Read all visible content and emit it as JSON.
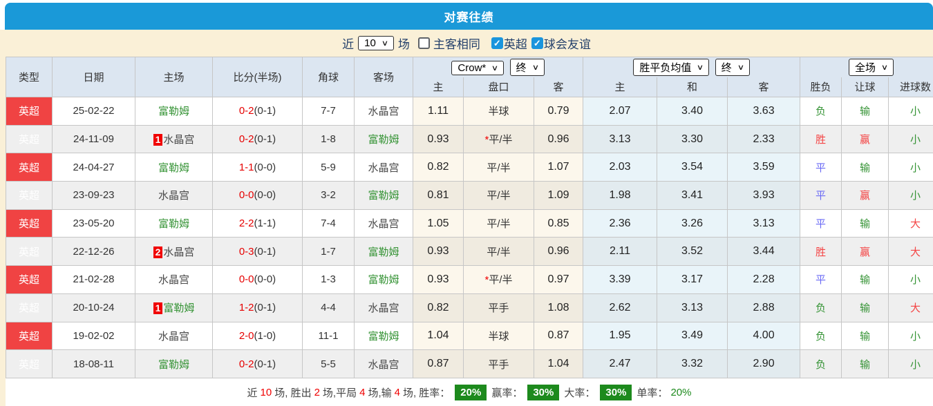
{
  "title": "对赛往绩",
  "colors": {
    "topbar_blue": "#1a99d8",
    "filter_cream": "#faf0d7",
    "header_bg": "#dce6f1",
    "row_alt_gray": "#efefef",
    "asia_col_tint": "#fcf7ec",
    "avg_col_tint": "#e9f4f9",
    "league_red": "#f04343",
    "team_green": "#359335",
    "team_dark": "#4a4a4a",
    "score_red": "#e60000",
    "win_red": "#f44444",
    "draw_blue": "#6a6af5",
    "lose_green": "#359335",
    "summary_badge_green": "#1d8a1d",
    "checkbox_blue": "#1a95dd"
  },
  "filter": {
    "near_label": "近",
    "count": "10",
    "games_label": "场",
    "checkboxes": [
      {
        "label": "主客相同",
        "checked": false
      },
      {
        "label": "英超",
        "checked": true
      },
      {
        "label": "球会友谊",
        "checked": true
      }
    ],
    "check_glyph": "✓",
    "chevron_glyph": "∨"
  },
  "table": {
    "static_headers": [
      "类型",
      "日期",
      "主场",
      "比分(半场)",
      "角球",
      "客场"
    ],
    "group_asia": {
      "bookmaker_select": "Crow*",
      "time_select": "终",
      "cols": [
        "主",
        "盘口",
        "客"
      ]
    },
    "group_avg": {
      "odds_select": "胜平负均值",
      "time_select": "终",
      "cols": [
        "主",
        "和",
        "客"
      ]
    },
    "group_full": {
      "scope_select": "全场",
      "cols": [
        "胜负",
        "让球",
        "进球数"
      ]
    },
    "rows": [
      {
        "league": "英超",
        "date": "25-02-22",
        "home": {
          "badge": "",
          "name": "富勒姆",
          "color": "green"
        },
        "score": {
          "ft": "0-2",
          "ht": "(0-1)"
        },
        "corners": "7-7",
        "away": {
          "name": "水晶宫",
          "color": "dark"
        },
        "asia": {
          "home": "1.11",
          "star": false,
          "line": "半球",
          "away": "0.79"
        },
        "avg": {
          "home": "2.07",
          "draw": "3.40",
          "away": "3.63"
        },
        "full": {
          "result": {
            "t": "负",
            "c": "green"
          },
          "handicap": {
            "t": "输",
            "c": "green"
          },
          "goals": {
            "t": "小",
            "c": "green"
          }
        }
      },
      {
        "league": "英超",
        "date": "24-11-09",
        "home": {
          "badge": "1",
          "name": "水晶宫",
          "color": "dark"
        },
        "score": {
          "ft": "0-2",
          "ht": "(0-1)"
        },
        "corners": "1-8",
        "away": {
          "name": "富勒姆",
          "color": "green"
        },
        "asia": {
          "home": "0.93",
          "star": true,
          "line": "平/半",
          "away": "0.96"
        },
        "avg": {
          "home": "3.13",
          "draw": "3.30",
          "away": "2.33"
        },
        "full": {
          "result": {
            "t": "胜",
            "c": "red"
          },
          "handicap": {
            "t": "赢",
            "c": "red"
          },
          "goals": {
            "t": "小",
            "c": "green"
          }
        }
      },
      {
        "league": "英超",
        "date": "24-04-27",
        "home": {
          "badge": "",
          "name": "富勒姆",
          "color": "green"
        },
        "score": {
          "ft": "1-1",
          "ht": "(0-0)"
        },
        "corners": "5-9",
        "away": {
          "name": "水晶宫",
          "color": "dark"
        },
        "asia": {
          "home": "0.82",
          "star": false,
          "line": "平/半",
          "away": "1.07"
        },
        "avg": {
          "home": "2.03",
          "draw": "3.54",
          "away": "3.59"
        },
        "full": {
          "result": {
            "t": "平",
            "c": "blue"
          },
          "handicap": {
            "t": "输",
            "c": "green"
          },
          "goals": {
            "t": "小",
            "c": "green"
          }
        }
      },
      {
        "league": "英超",
        "date": "23-09-23",
        "home": {
          "badge": "",
          "name": "水晶宫",
          "color": "dark"
        },
        "score": {
          "ft": "0-0",
          "ht": "(0-0)"
        },
        "corners": "3-2",
        "away": {
          "name": "富勒姆",
          "color": "green"
        },
        "asia": {
          "home": "0.81",
          "star": false,
          "line": "平/半",
          "away": "1.09"
        },
        "avg": {
          "home": "1.98",
          "draw": "3.41",
          "away": "3.93"
        },
        "full": {
          "result": {
            "t": "平",
            "c": "blue"
          },
          "handicap": {
            "t": "赢",
            "c": "red"
          },
          "goals": {
            "t": "小",
            "c": "green"
          }
        }
      },
      {
        "league": "英超",
        "date": "23-05-20",
        "home": {
          "badge": "",
          "name": "富勒姆",
          "color": "green"
        },
        "score": {
          "ft": "2-2",
          "ht": "(1-1)"
        },
        "corners": "7-4",
        "away": {
          "name": "水晶宫",
          "color": "dark"
        },
        "asia": {
          "home": "1.05",
          "star": false,
          "line": "平/半",
          "away": "0.85"
        },
        "avg": {
          "home": "2.36",
          "draw": "3.26",
          "away": "3.13"
        },
        "full": {
          "result": {
            "t": "平",
            "c": "blue"
          },
          "handicap": {
            "t": "输",
            "c": "green"
          },
          "goals": {
            "t": "大",
            "c": "red"
          }
        }
      },
      {
        "league": "英超",
        "date": "22-12-26",
        "home": {
          "badge": "2",
          "name": "水晶宫",
          "color": "dark"
        },
        "score": {
          "ft": "0-3",
          "ht": "(0-1)"
        },
        "corners": "1-7",
        "away": {
          "name": "富勒姆",
          "color": "green"
        },
        "asia": {
          "home": "0.93",
          "star": false,
          "line": "平/半",
          "away": "0.96"
        },
        "avg": {
          "home": "2.11",
          "draw": "3.52",
          "away": "3.44"
        },
        "full": {
          "result": {
            "t": "胜",
            "c": "red"
          },
          "handicap": {
            "t": "赢",
            "c": "red"
          },
          "goals": {
            "t": "大",
            "c": "red"
          }
        }
      },
      {
        "league": "英超",
        "date": "21-02-28",
        "home": {
          "badge": "",
          "name": "水晶宫",
          "color": "dark"
        },
        "score": {
          "ft": "0-0",
          "ht": "(0-0)"
        },
        "corners": "1-3",
        "away": {
          "name": "富勒姆",
          "color": "green"
        },
        "asia": {
          "home": "0.93",
          "star": true,
          "line": "平/半",
          "away": "0.97"
        },
        "avg": {
          "home": "3.39",
          "draw": "3.17",
          "away": "2.28"
        },
        "full": {
          "result": {
            "t": "平",
            "c": "blue"
          },
          "handicap": {
            "t": "输",
            "c": "green"
          },
          "goals": {
            "t": "小",
            "c": "green"
          }
        }
      },
      {
        "league": "英超",
        "date": "20-10-24",
        "home": {
          "badge": "1",
          "name": "富勒姆",
          "color": "green"
        },
        "score": {
          "ft": "1-2",
          "ht": "(0-1)"
        },
        "corners": "4-4",
        "away": {
          "name": "水晶宫",
          "color": "dark"
        },
        "asia": {
          "home": "0.82",
          "star": false,
          "line": "平手",
          "away": "1.08"
        },
        "avg": {
          "home": "2.62",
          "draw": "3.13",
          "away": "2.88"
        },
        "full": {
          "result": {
            "t": "负",
            "c": "green"
          },
          "handicap": {
            "t": "输",
            "c": "green"
          },
          "goals": {
            "t": "大",
            "c": "red"
          }
        }
      },
      {
        "league": "英超",
        "date": "19-02-02",
        "home": {
          "badge": "",
          "name": "水晶宫",
          "color": "dark"
        },
        "score": {
          "ft": "2-0",
          "ht": "(1-0)"
        },
        "corners": "11-1",
        "away": {
          "name": "富勒姆",
          "color": "green"
        },
        "asia": {
          "home": "1.04",
          "star": false,
          "line": "半球",
          "away": "0.87"
        },
        "avg": {
          "home": "1.95",
          "draw": "3.49",
          "away": "4.00"
        },
        "full": {
          "result": {
            "t": "负",
            "c": "green"
          },
          "handicap": {
            "t": "输",
            "c": "green"
          },
          "goals": {
            "t": "小",
            "c": "green"
          }
        }
      },
      {
        "league": "英超",
        "date": "18-08-11",
        "home": {
          "badge": "",
          "name": "富勒姆",
          "color": "green"
        },
        "score": {
          "ft": "0-2",
          "ht": "(0-1)"
        },
        "corners": "5-5",
        "away": {
          "name": "水晶宫",
          "color": "dark"
        },
        "asia": {
          "home": "0.87",
          "star": false,
          "line": "平手",
          "away": "1.04"
        },
        "avg": {
          "home": "2.47",
          "draw": "3.32",
          "away": "2.90"
        },
        "full": {
          "result": {
            "t": "负",
            "c": "green"
          },
          "handicap": {
            "t": "输",
            "c": "green"
          },
          "goals": {
            "t": "小",
            "c": "green"
          }
        }
      }
    ]
  },
  "summary": {
    "t_near": "近",
    "n_total": "10",
    "t_win": "场, 胜出",
    "n_win": "2",
    "t_draw": "场,平局",
    "n_draw": "4",
    "t_lose": "场,输",
    "n_lose": "4",
    "t_winrate": "场, 胜率：",
    "win_rate": "20%",
    "t_profitrate": "赢率：",
    "profit_rate": "30%",
    "t_bigrate": "大率：",
    "big_rate": "30%",
    "t_singlerate": "单率：",
    "single_rate": "20%"
  }
}
